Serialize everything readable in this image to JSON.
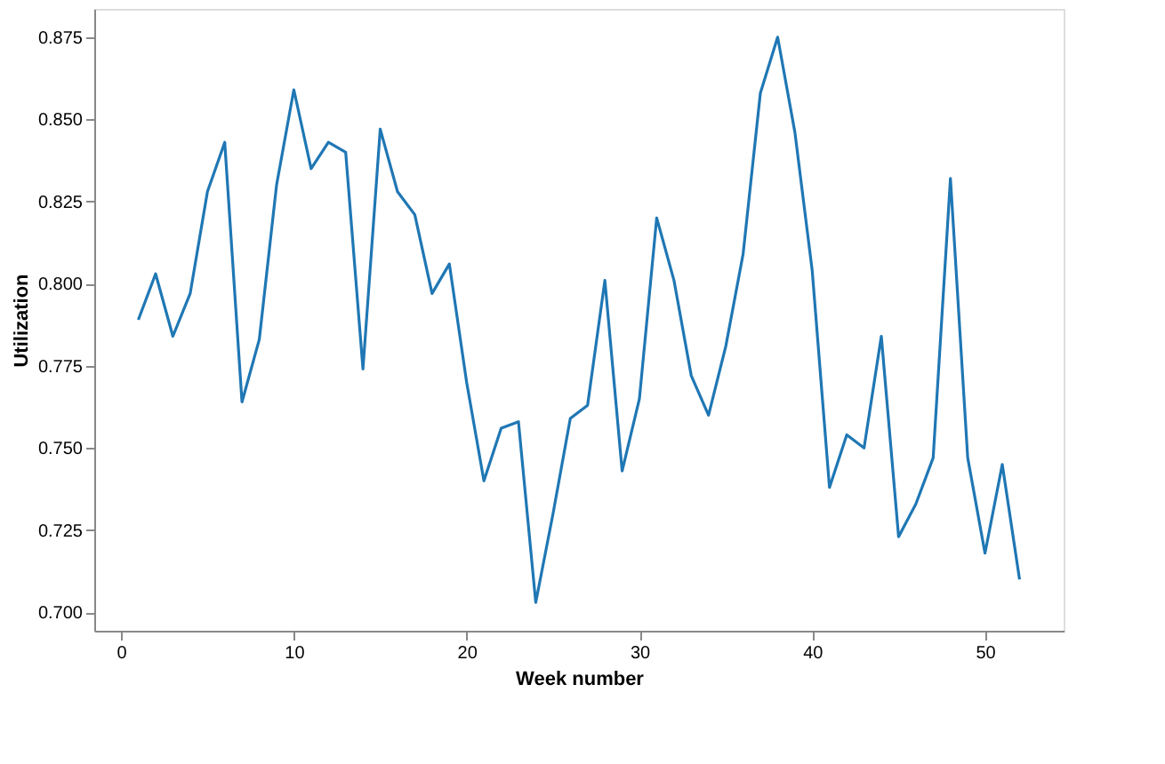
{
  "chart_data": {
    "type": "line",
    "xlabel": "Week number",
    "ylabel": "Utilization",
    "x": [
      1,
      2,
      3,
      4,
      5,
      6,
      7,
      8,
      9,
      10,
      11,
      12,
      13,
      14,
      15,
      16,
      17,
      18,
      19,
      20,
      21,
      22,
      23,
      24,
      25,
      26,
      27,
      28,
      29,
      30,
      31,
      32,
      33,
      34,
      35,
      36,
      37,
      38,
      39,
      40,
      41,
      42,
      43,
      44,
      45,
      46,
      47,
      48,
      49,
      50,
      51,
      52
    ],
    "series": [
      {
        "color": "#1f77b4",
        "values": [
          0.789,
          0.803,
          0.784,
          0.797,
          0.828,
          0.843,
          0.764,
          0.783,
          0.83,
          0.859,
          0.835,
          0.843,
          0.84,
          0.774,
          0.847,
          0.828,
          0.821,
          0.797,
          0.806,
          0.77,
          0.74,
          0.756,
          0.758,
          0.703,
          0.73,
          0.759,
          0.763,
          0.801,
          0.743,
          0.765,
          0.82,
          0.801,
          0.772,
          0.76,
          0.781,
          0.809,
          0.858,
          0.875,
          0.846,
          0.804,
          0.738,
          0.754,
          0.75,
          0.784,
          0.723,
          0.733,
          0.747,
          0.832,
          0.747,
          0.718,
          0.745,
          0.71
        ]
      }
    ],
    "xlim": [
      -1.55,
      54.55
    ],
    "xticks": [
      0,
      10,
      20,
      30,
      40,
      50
    ],
    "ylim": [
      0.6944,
      0.8836
    ],
    "yticks": [
      {
        "value": 0.7,
        "label": "0.700"
      },
      {
        "value": 0.725,
        "label": "0.725"
      },
      {
        "value": 0.75,
        "label": "0.750"
      },
      {
        "value": 0.775,
        "label": "0.775"
      },
      {
        "value": 0.8,
        "label": "0.800"
      },
      {
        "value": 0.825,
        "label": "0.825"
      },
      {
        "value": 0.85,
        "label": "0.850"
      },
      {
        "value": 0.875,
        "label": "0.875"
      }
    ],
    "grid": false,
    "legend": false
  }
}
